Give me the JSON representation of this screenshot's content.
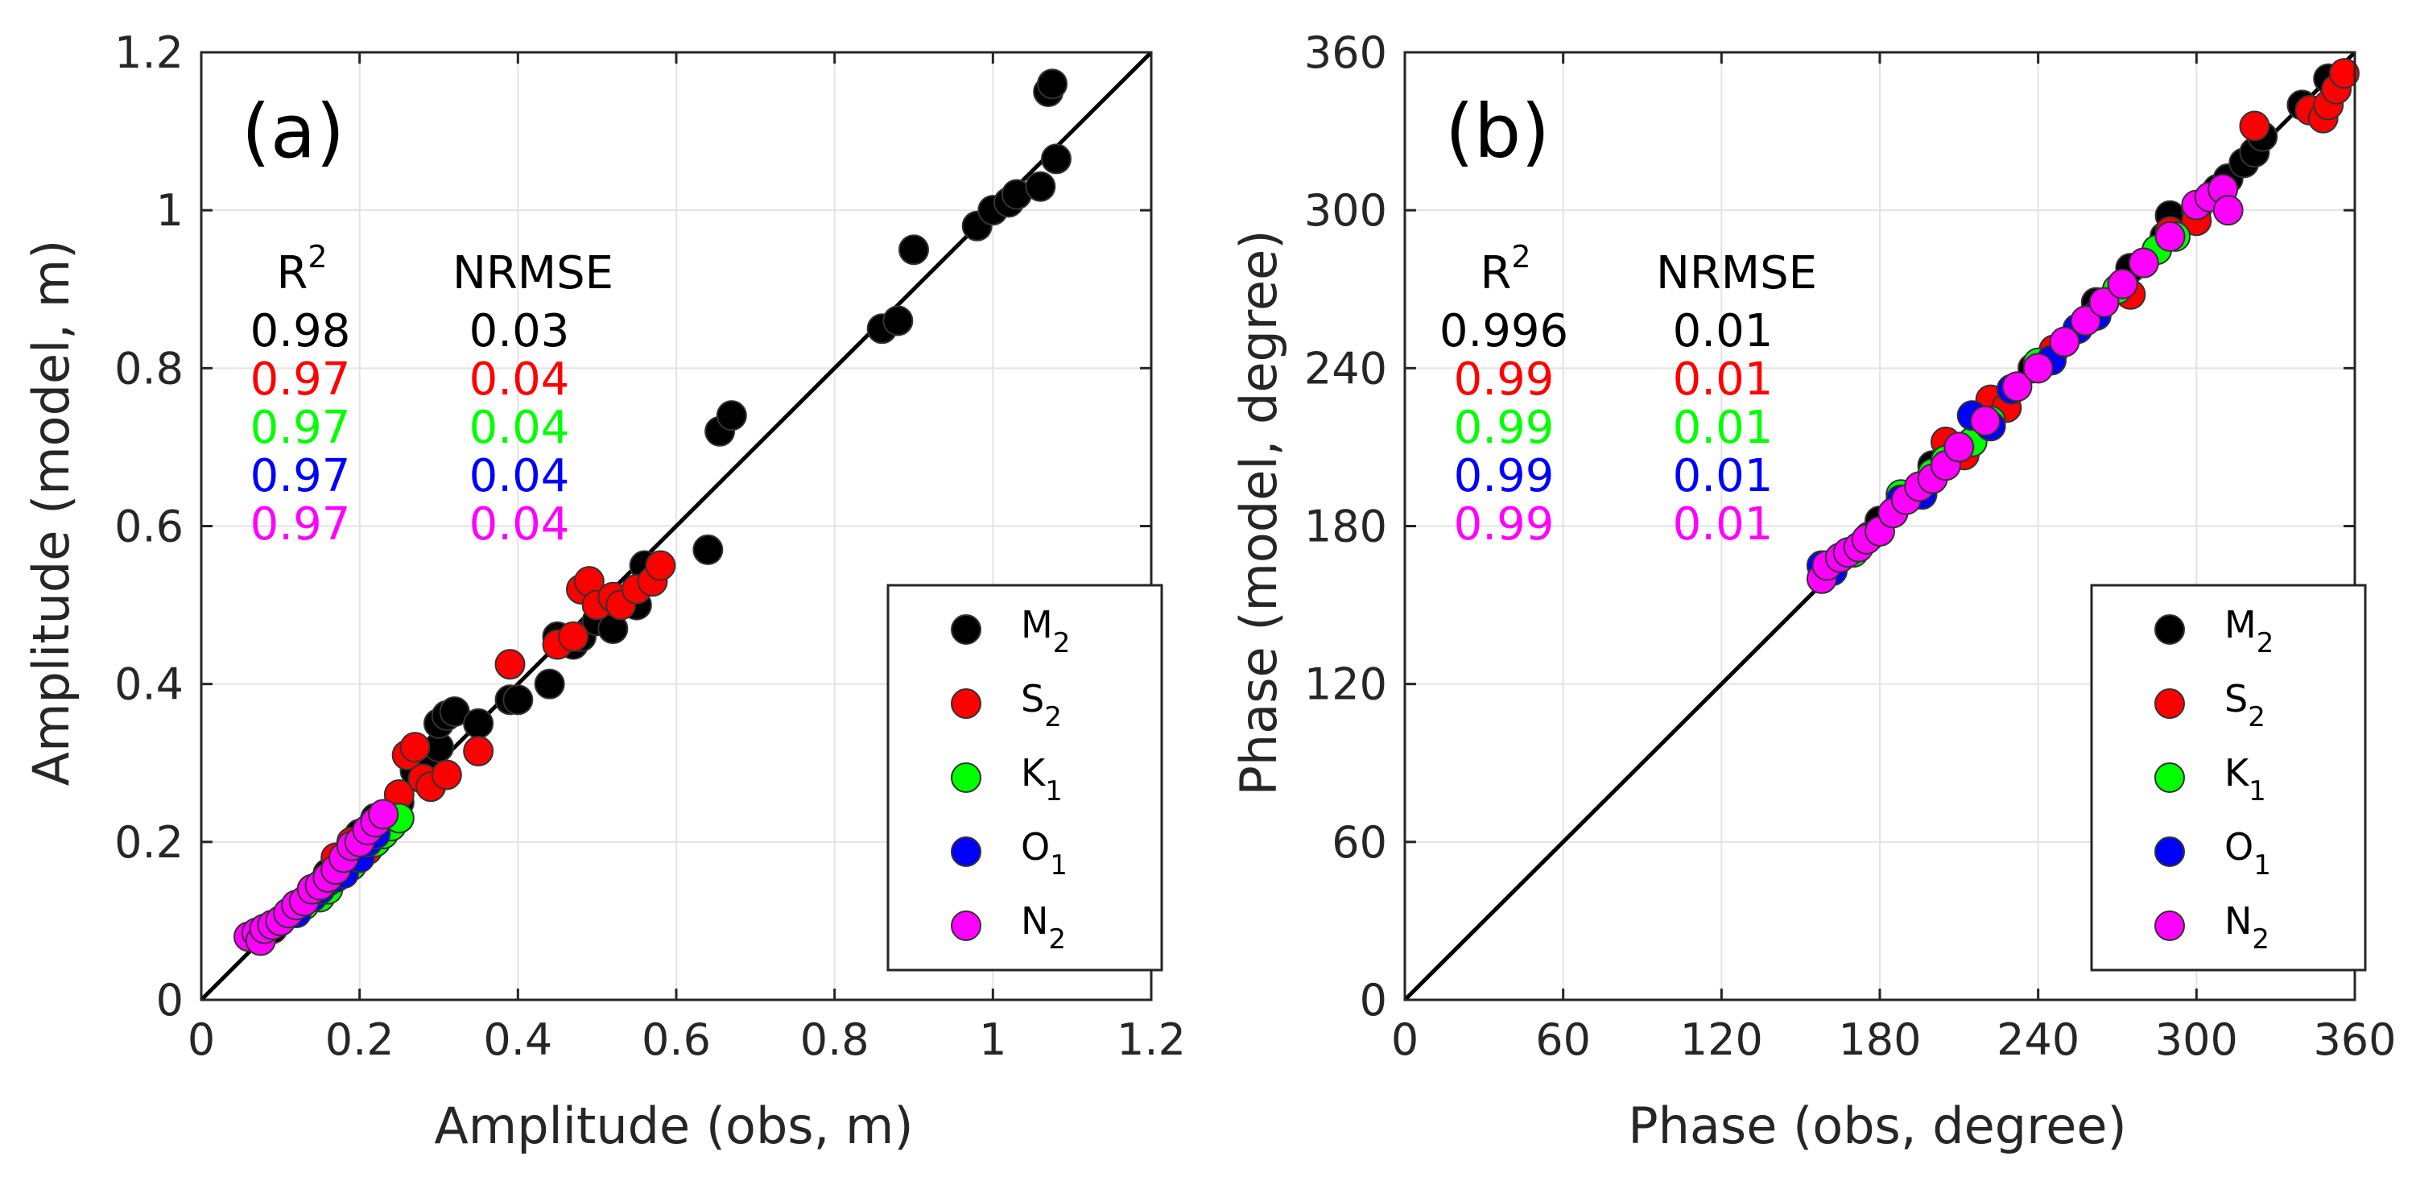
{
  "chart_data": [
    {
      "type": "scatter",
      "panel_label": "(a)",
      "xlabel": "Amplitude (obs, m)",
      "ylabel": "Amplitude (model, m)",
      "xlim": [
        0,
        1.2
      ],
      "ylim": [
        0,
        1.2
      ],
      "xticks": [
        "0",
        "0.2",
        "0.4",
        "0.6",
        "0.8",
        "1",
        "1.2"
      ],
      "yticks": [
        "0",
        "0.2",
        "0.4",
        "0.6",
        "0.8",
        "1",
        "1.2"
      ],
      "grid": true,
      "legend_position": "bottom-right",
      "reference_line": "1:1",
      "stats_headers": {
        "r2": "R",
        "r2_sup": "2",
        "nrmse": "NRMSE"
      },
      "series": [
        {
          "name": "M",
          "sub": "2",
          "color": "#000000",
          "r2": "0.98",
          "nrmse": "0.03",
          "points": [
            [
              0.07,
              0.08
            ],
            [
              0.09,
              0.09
            ],
            [
              0.1,
              0.1
            ],
            [
              0.12,
              0.12
            ],
            [
              0.14,
              0.14
            ],
            [
              0.16,
              0.16
            ],
            [
              0.18,
              0.18
            ],
            [
              0.2,
              0.21
            ],
            [
              0.22,
              0.23
            ],
            [
              0.25,
              0.25
            ],
            [
              0.27,
              0.29
            ],
            [
              0.29,
              0.3
            ],
            [
              0.3,
              0.32
            ],
            [
              0.3,
              0.35
            ],
            [
              0.31,
              0.36
            ],
            [
              0.32,
              0.365
            ],
            [
              0.35,
              0.35
            ],
            [
              0.39,
              0.38
            ],
            [
              0.4,
              0.38
            ],
            [
              0.44,
              0.4
            ],
            [
              0.45,
              0.46
            ],
            [
              0.47,
              0.45
            ],
            [
              0.48,
              0.46
            ],
            [
              0.5,
              0.48
            ],
            [
              0.52,
              0.47
            ],
            [
              0.55,
              0.5
            ],
            [
              0.56,
              0.55
            ],
            [
              0.64,
              0.57
            ],
            [
              0.655,
              0.72
            ],
            [
              0.67,
              0.74
            ],
            [
              0.86,
              0.85
            ],
            [
              0.88,
              0.86
            ],
            [
              0.9,
              0.95
            ],
            [
              0.98,
              0.98
            ],
            [
              1.0,
              1.0
            ],
            [
              1.02,
              1.01
            ],
            [
              1.03,
              1.02
            ],
            [
              1.06,
              1.03
            ],
            [
              1.07,
              1.15
            ],
            [
              1.075,
              1.16
            ],
            [
              1.08,
              1.065
            ]
          ]
        },
        {
          "name": "S",
          "sub": "2",
          "color": "#ff0000",
          "r2": "0.97",
          "nrmse": "0.04",
          "points": [
            [
              0.17,
              0.18
            ],
            [
              0.19,
              0.2
            ],
            [
              0.21,
              0.19
            ],
            [
              0.23,
              0.23
            ],
            [
              0.25,
              0.26
            ],
            [
              0.26,
              0.31
            ],
            [
              0.27,
              0.32
            ],
            [
              0.28,
              0.28
            ],
            [
              0.29,
              0.27
            ],
            [
              0.31,
              0.285
            ],
            [
              0.35,
              0.315
            ],
            [
              0.39,
              0.425
            ],
            [
              0.45,
              0.45
            ],
            [
              0.47,
              0.46
            ],
            [
              0.48,
              0.52
            ],
            [
              0.49,
              0.53
            ],
            [
              0.5,
              0.5
            ],
            [
              0.52,
              0.51
            ],
            [
              0.53,
              0.5
            ],
            [
              0.55,
              0.52
            ],
            [
              0.57,
              0.53
            ],
            [
              0.58,
              0.55
            ]
          ]
        },
        {
          "name": "K",
          "sub": "1",
          "color": "#00ff00",
          "r2": "0.97",
          "nrmse": "0.04",
          "points": [
            [
              0.13,
              0.12
            ],
            [
              0.15,
              0.13
            ],
            [
              0.16,
              0.14
            ],
            [
              0.17,
              0.16
            ],
            [
              0.19,
              0.17
            ],
            [
              0.2,
              0.18
            ],
            [
              0.22,
              0.2
            ],
            [
              0.23,
              0.21
            ],
            [
              0.24,
              0.22
            ],
            [
              0.25,
              0.23
            ]
          ]
        },
        {
          "name": "O",
          "sub": "1",
          "color": "#0000ff",
          "r2": "0.97",
          "nrmse": "0.04",
          "points": [
            [
              0.1,
              0.1
            ],
            [
              0.12,
              0.11
            ],
            [
              0.14,
              0.13
            ],
            [
              0.15,
              0.14
            ],
            [
              0.16,
              0.15
            ],
            [
              0.17,
              0.155
            ],
            [
              0.18,
              0.16
            ],
            [
              0.2,
              0.18
            ],
            [
              0.21,
              0.2
            ],
            [
              0.22,
              0.21
            ]
          ]
        },
        {
          "name": "N",
          "sub": "2",
          "color": "#ff00ff",
          "r2": "0.97",
          "nrmse": "0.04",
          "points": [
            [
              0.06,
              0.08
            ],
            [
              0.07,
              0.085
            ],
            [
              0.075,
              0.075
            ],
            [
              0.08,
              0.09
            ],
            [
              0.09,
              0.095
            ],
            [
              0.1,
              0.1
            ],
            [
              0.11,
              0.11
            ],
            [
              0.12,
              0.12
            ],
            [
              0.13,
              0.125
            ],
            [
              0.14,
              0.14
            ],
            [
              0.15,
              0.145
            ],
            [
              0.16,
              0.155
            ],
            [
              0.17,
              0.165
            ],
            [
              0.18,
              0.18
            ],
            [
              0.19,
              0.195
            ],
            [
              0.2,
              0.2
            ],
            [
              0.21,
              0.215
            ],
            [
              0.22,
              0.225
            ],
            [
              0.23,
              0.235
            ]
          ]
        }
      ]
    },
    {
      "type": "scatter",
      "panel_label": "(b)",
      "xlabel": "Phase (obs, degree)",
      "ylabel": "Phase (model, degree)",
      "xlim": [
        0,
        360
      ],
      "ylim": [
        0,
        360
      ],
      "xticks": [
        "0",
        "60",
        "120",
        "180",
        "240",
        "300",
        "360"
      ],
      "yticks": [
        "0",
        "60",
        "120",
        "180",
        "240",
        "300",
        "360"
      ],
      "grid": true,
      "legend_position": "bottom-right",
      "reference_line": "1:1",
      "stats_headers": {
        "r2": "R",
        "r2_sup": "2",
        "nrmse": "NRMSE"
      },
      "series": [
        {
          "name": "M",
          "sub": "2",
          "color": "#000000",
          "r2": "0.996",
          "nrmse": "0.01",
          "points": [
            [
              180,
              182
            ],
            [
              200,
              203
            ],
            [
              218,
              222
            ],
            [
              238,
              240
            ],
            [
              262,
              265
            ],
            [
              275,
              278
            ],
            [
              288,
              290
            ],
            [
              290,
              298
            ],
            [
              300,
              300
            ],
            [
              308,
              308
            ],
            [
              312,
              312
            ],
            [
              318,
              318
            ],
            [
              322,
              322
            ],
            [
              325,
              328
            ],
            [
              340,
              340
            ],
            [
              350,
              350
            ]
          ]
        },
        {
          "name": "S",
          "sub": "2",
          "color": "#ff0000",
          "r2": "0.99",
          "nrmse": "0.01",
          "points": [
            [
              185,
              185
            ],
            [
              205,
              212
            ],
            [
              212,
              207
            ],
            [
              222,
              228
            ],
            [
              228,
              225
            ],
            [
              246,
              247
            ],
            [
              262,
              260
            ],
            [
              275,
              268
            ],
            [
              280,
              280
            ],
            [
              290,
              292
            ],
            [
              300,
              296
            ],
            [
              322,
              332
            ],
            [
              343,
              338
            ],
            [
              348,
              335
            ],
            [
              350,
              340
            ],
            [
              353,
              346
            ],
            [
              356,
              352
            ]
          ]
        },
        {
          "name": "K",
          "sub": "1",
          "color": "#00ff00",
          "r2": "0.99",
          "nrmse": "0.01",
          "points": [
            [
              170,
              170
            ],
            [
              188,
              192
            ],
            [
              195,
              195
            ],
            [
              200,
              200
            ],
            [
              205,
              205
            ],
            [
              210,
              210
            ],
            [
              215,
              212
            ],
            [
              222,
              220
            ],
            [
              230,
              232
            ],
            [
              240,
              242
            ],
            [
              258,
              258
            ],
            [
              270,
              270
            ],
            [
              285,
              285
            ],
            [
              292,
              290
            ]
          ]
        },
        {
          "name": "O",
          "sub": "1",
          "color": "#0000ff",
          "r2": "0.99",
          "nrmse": "0.01",
          "points": [
            [
              158,
              165
            ],
            [
              162,
              163
            ],
            [
              176,
              176
            ],
            [
              188,
              190
            ],
            [
              196,
              192
            ],
            [
              215,
              222
            ],
            [
              222,
              218
            ],
            [
              230,
              232
            ],
            [
              245,
              243
            ],
            [
              255,
              255
            ],
            [
              262,
              260
            ]
          ]
        },
        {
          "name": "N",
          "sub": "2",
          "color": "#ff00ff",
          "r2": "0.99",
          "nrmse": "0.01",
          "points": [
            [
              158,
              160
            ],
            [
              160,
              165
            ],
            [
              165,
              168
            ],
            [
              168,
              170
            ],
            [
              172,
              172
            ],
            [
              175,
              175
            ],
            [
              180,
              178
            ],
            [
              185,
              185
            ],
            [
              190,
              190
            ],
            [
              195,
              195
            ],
            [
              200,
              198
            ],
            [
              205,
              203
            ],
            [
              210,
              210
            ],
            [
              220,
              220
            ],
            [
              232,
              233
            ],
            [
              240,
              240
            ],
            [
              250,
              250
            ],
            [
              258,
              258
            ],
            [
              265,
              265
            ],
            [
              272,
              272
            ],
            [
              280,
              280
            ],
            [
              290,
              290
            ],
            [
              300,
              302
            ],
            [
              305,
              305
            ],
            [
              310,
              308
            ],
            [
              312,
              300
            ]
          ]
        }
      ]
    }
  ]
}
